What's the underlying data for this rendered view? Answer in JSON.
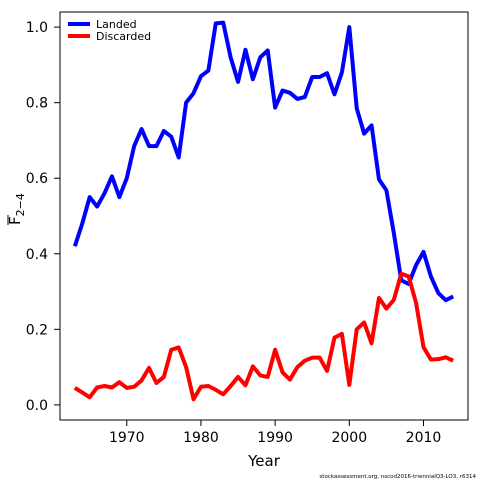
{
  "chart_data": {
    "type": "line",
    "xlabel": "Year",
    "ylabel_main": "F",
    "ylabel_sub": "2−4",
    "xlim": [
      1961,
      2016
    ],
    "ylim": [
      -0.04,
      1.04
    ],
    "xticks": [
      1970,
      1980,
      1990,
      2000,
      2010
    ],
    "yticks": [
      0.0,
      0.2,
      0.4,
      0.6,
      0.8,
      1.0
    ],
    "ytick_labels": [
      "0.0",
      "0.2",
      "0.4",
      "0.6",
      "0.8",
      "1.0"
    ],
    "legend_position": "top-left",
    "grid": false,
    "x": [
      1963,
      1964,
      1965,
      1966,
      1967,
      1968,
      1969,
      1970,
      1971,
      1972,
      1973,
      1974,
      1975,
      1976,
      1977,
      1978,
      1979,
      1980,
      1981,
      1982,
      1983,
      1984,
      1985,
      1986,
      1987,
      1988,
      1989,
      1990,
      1991,
      1992,
      1993,
      1994,
      1995,
      1996,
      1997,
      1998,
      1999,
      2000,
      2001,
      2002,
      2003,
      2004,
      2005,
      2006,
      2007,
      2008,
      2009,
      2010,
      2011,
      2012,
      2013,
      2014
    ],
    "series": [
      {
        "name": "Landed",
        "color": "#0000ff",
        "values": [
          0.42,
          0.48,
          0.55,
          0.525,
          0.56,
          0.605,
          0.55,
          0.6,
          0.685,
          0.73,
          0.685,
          0.685,
          0.725,
          0.71,
          0.655,
          0.8,
          0.825,
          0.87,
          0.885,
          1.01,
          1.012,
          0.92,
          0.855,
          0.94,
          0.862,
          0.92,
          0.938,
          0.787,
          0.832,
          0.826,
          0.81,
          0.815,
          0.868,
          0.868,
          0.878,
          0.822,
          0.88,
          1.0,
          0.785,
          0.718,
          0.74,
          0.597,
          0.568,
          0.455,
          0.33,
          0.32,
          0.37,
          0.405,
          0.34,
          0.296,
          0.277,
          0.287
        ]
      },
      {
        "name": "Discarded",
        "color": "#ff0000",
        "values": [
          0.045,
          0.033,
          0.02,
          0.046,
          0.05,
          0.046,
          0.06,
          0.045,
          0.048,
          0.065,
          0.098,
          0.058,
          0.074,
          0.146,
          0.152,
          0.1,
          0.015,
          0.048,
          0.05,
          0.04,
          0.028,
          0.05,
          0.074,
          0.052,
          0.102,
          0.078,
          0.074,
          0.146,
          0.086,
          0.067,
          0.1,
          0.117,
          0.125,
          0.125,
          0.09,
          0.178,
          0.188,
          0.053,
          0.2,
          0.218,
          0.163,
          0.283,
          0.255,
          0.278,
          0.347,
          0.34,
          0.27,
          0.153,
          0.12,
          0.121,
          0.126,
          0.117
        ]
      }
    ]
  },
  "footer": "stockassessment.org, nscod2016-triennialQ3-LO3, r6314"
}
